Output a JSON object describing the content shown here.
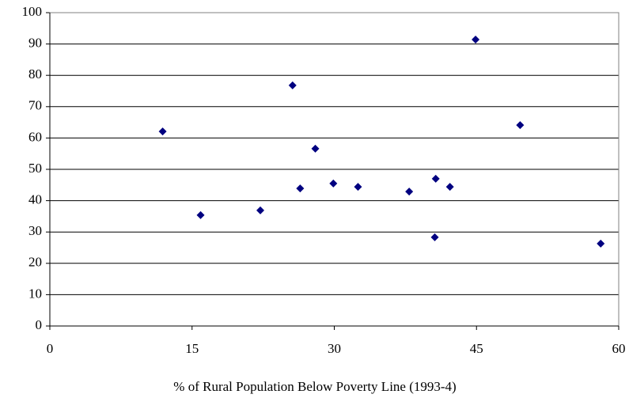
{
  "chart_data": {
    "type": "scatter",
    "x_label": "% of Rural Population Below Poverty Line (1993-4)",
    "x": [
      11.9,
      15.9,
      22.2,
      25.6,
      26.4,
      28.0,
      29.9,
      32.5,
      37.9,
      40.6,
      40.7,
      42.2,
      44.9,
      49.6,
      58.1
    ],
    "values": [
      62.1,
      35.4,
      36.9,
      76.8,
      43.9,
      56.6,
      45.5,
      44.4,
      42.9,
      28.3,
      47.0,
      44.4,
      91.4,
      64.1,
      26.3
    ],
    "color": "#000080",
    "xlim": [
      0,
      60
    ],
    "xticks": [
      0,
      15,
      30,
      45,
      60
    ],
    "ylim": [
      0,
      100
    ],
    "yticks": [
      0,
      10,
      20,
      30,
      40,
      50,
      60,
      70,
      80,
      90,
      100
    ],
    "grid": true
  }
}
